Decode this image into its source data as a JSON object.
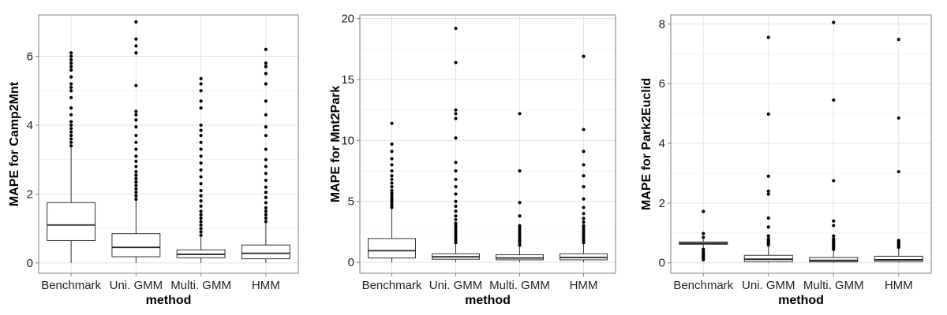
{
  "chart_data": [
    {
      "type": "box",
      "xlabel": "method",
      "ylabel": "MAPE for Camp2Mnt",
      "categories": [
        "Benchmark",
        "Uni. GMM",
        "Multi. GMM",
        "HMM"
      ],
      "ylim": [
        -0.3,
        7.2
      ],
      "yticks": [
        0,
        2,
        4,
        6
      ],
      "grid": true,
      "boxes": [
        {
          "whisker_low": 0.0,
          "q1": 0.65,
          "median": 1.1,
          "q3": 1.75,
          "whisker_high": 3.35,
          "outliers": [
            3.4,
            3.5,
            3.6,
            3.7,
            3.8,
            3.9,
            4.0,
            4.1,
            4.3,
            4.5,
            4.8,
            5.0,
            5.1,
            5.2,
            5.4,
            5.6,
            5.7,
            5.8,
            5.9,
            6.0,
            6.1
          ]
        },
        {
          "whisker_low": 0.0,
          "q1": 0.18,
          "median": 0.45,
          "q3": 0.85,
          "whisker_high": 1.8,
          "outliers": [
            1.85,
            1.95,
            2.05,
            2.15,
            2.25,
            2.35,
            2.45,
            2.55,
            2.65,
            2.8,
            2.95,
            3.1,
            3.3,
            3.5,
            3.7,
            3.95,
            4.15,
            4.3,
            4.4,
            5.15,
            6.1,
            6.3,
            6.5,
            7.0
          ]
        },
        {
          "whisker_low": 0.0,
          "q1": 0.15,
          "median": 0.25,
          "q3": 0.38,
          "whisker_high": 0.75,
          "outliers": [
            0.8,
            0.9,
            1.0,
            1.1,
            1.2,
            1.3,
            1.4,
            1.5,
            1.65,
            1.8,
            1.95,
            2.1,
            2.3,
            2.5,
            2.7,
            2.9,
            3.1,
            3.3,
            3.5,
            3.7,
            3.85,
            4.0,
            4.5,
            4.7,
            5.0,
            5.2,
            5.35
          ]
        },
        {
          "whisker_low": 0.0,
          "q1": 0.12,
          "median": 0.28,
          "q3": 0.52,
          "whisker_high": 1.15,
          "outliers": [
            1.2,
            1.3,
            1.4,
            1.5,
            1.6,
            1.75,
            1.9,
            2.05,
            2.2,
            2.4,
            2.6,
            2.8,
            3.0,
            3.3,
            3.7,
            3.95,
            4.3,
            4.7,
            5.2,
            5.5,
            5.7,
            5.8,
            6.2
          ]
        }
      ]
    },
    {
      "type": "box",
      "xlabel": "method",
      "ylabel": "MAPE for Mnt2Park",
      "categories": [
        "Benchmark",
        "Uni. GMM",
        "Multi. GMM",
        "HMM"
      ],
      "ylim": [
        -0.9,
        20.3
      ],
      "yticks": [
        0,
        5,
        10,
        15,
        20
      ],
      "grid": true,
      "boxes": [
        {
          "whisker_low": 0.0,
          "q1": 0.35,
          "median": 0.95,
          "q3": 1.95,
          "whisker_high": 4.4,
          "outliers": [
            4.5,
            4.7,
            4.9,
            5.1,
            5.3,
            5.5,
            5.7,
            5.9,
            6.2,
            6.5,
            6.8,
            7.1,
            7.5,
            8.0,
            8.5,
            9.1,
            9.7,
            11.4
          ]
        },
        {
          "whisker_low": 0.0,
          "q1": 0.25,
          "median": 0.45,
          "q3": 0.7,
          "whisker_high": 1.5,
          "outliers": [
            1.6,
            1.8,
            2.0,
            2.2,
            2.4,
            2.6,
            2.8,
            3.0,
            3.2,
            3.5,
            3.8,
            4.2,
            4.6,
            5.0,
            5.6,
            6.2,
            6.8,
            7.5,
            8.2,
            10.2,
            11.8,
            12.2,
            12.5,
            16.4,
            19.2
          ]
        },
        {
          "whisker_low": 0.0,
          "q1": 0.2,
          "median": 0.35,
          "q3": 0.62,
          "whisker_high": 1.3,
          "outliers": [
            1.4,
            1.6,
            1.8,
            2.0,
            2.2,
            2.4,
            2.6,
            2.8,
            3.0,
            3.8,
            4.9,
            7.5,
            12.2
          ]
        },
        {
          "whisker_low": 0.0,
          "q1": 0.2,
          "median": 0.4,
          "q3": 0.7,
          "whisker_high": 1.5,
          "outliers": [
            1.6,
            1.8,
            2.0,
            2.2,
            2.4,
            2.6,
            2.8,
            3.0,
            3.3,
            3.6,
            4.0,
            4.5,
            5.2,
            6.2,
            7.1,
            8.0,
            9.1,
            10.9,
            16.9
          ]
        }
      ]
    },
    {
      "type": "box",
      "xlabel": "method",
      "ylabel": "MAPE for Park2Euclid",
      "categories": [
        "Benchmark",
        "Uni. GMM",
        "Multi. GMM",
        "HMM"
      ],
      "ylim": [
        -0.35,
        8.3
      ],
      "yticks": [
        0,
        2,
        4,
        6,
        8
      ],
      "grid": true,
      "boxes": [
        {
          "whisker_low": 0.5,
          "q1": 0.62,
          "median": 0.65,
          "q3": 0.7,
          "whisker_high": 0.78,
          "outliers": [
            0.1,
            0.15,
            0.2,
            0.25,
            0.3,
            0.35,
            0.4,
            0.45,
            0.85,
            0.98,
            1.72
          ]
        },
        {
          "whisker_low": 0.0,
          "q1": 0.04,
          "median": 0.12,
          "q3": 0.25,
          "whisker_high": 0.55,
          "outliers": [
            0.6,
            0.65,
            0.7,
            0.75,
            0.8,
            0.9,
            1.2,
            1.5,
            2.3,
            2.4,
            2.9,
            4.98,
            7.55
          ]
        },
        {
          "whisker_low": 0.0,
          "q1": 0.03,
          "median": 0.08,
          "q3": 0.18,
          "whisker_high": 0.42,
          "outliers": [
            0.45,
            0.5,
            0.55,
            0.6,
            0.65,
            0.7,
            0.75,
            0.8,
            0.9,
            1.25,
            1.4,
            2.75,
            5.45,
            8.05
          ]
        },
        {
          "whisker_low": 0.0,
          "q1": 0.04,
          "median": 0.1,
          "q3": 0.22,
          "whisker_high": 0.5,
          "outliers": [
            0.52,
            0.56,
            0.6,
            0.65,
            0.7,
            0.75,
            3.05,
            4.85,
            7.48
          ]
        }
      ]
    }
  ]
}
